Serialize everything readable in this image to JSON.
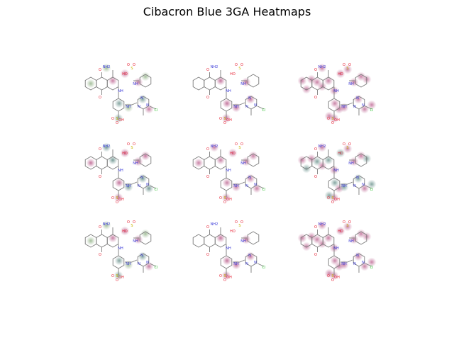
{
  "figure": {
    "title": "Cibacron Blue 3GA Heatmaps"
  },
  "palette": {
    "bond": "#7a7a7a",
    "oxygen": "#e8283a",
    "nitrogen": "#3a3ad8",
    "sulfur": "#c8b400",
    "chlorine": "#2cc02c",
    "heat_magenta": "#9c1a5c",
    "heat_teal": "#1e5a52",
    "heat_green": "#5a8a4a"
  },
  "atom_labels": {
    "amine": "NH2",
    "oxo": "O",
    "imine": "NH",
    "ring_n": "N",
    "chloro": "Cl",
    "sulfonyl_o": "O",
    "sulfonyl_s": "S",
    "hydroxy": "OH",
    "hydroxy_alt": "HO"
  },
  "panels": [
    {
      "row": 1,
      "col": 1,
      "scheme": "green-magenta-teal"
    },
    {
      "row": 1,
      "col": 2,
      "scheme": "magenta-sparse"
    },
    {
      "row": 1,
      "col": 3,
      "scheme": "magenta-dense"
    },
    {
      "row": 2,
      "col": 1,
      "scheme": "magenta-teal"
    },
    {
      "row": 2,
      "col": 2,
      "scheme": "magenta-medium"
    },
    {
      "row": 2,
      "col": 3,
      "scheme": "magenta-teal-dense"
    },
    {
      "row": 3,
      "col": 1,
      "scheme": "green-magenta-teal"
    },
    {
      "row": 3,
      "col": 2,
      "scheme": "magenta-sparse"
    },
    {
      "row": 3,
      "col": 3,
      "scheme": "magenta-dense"
    }
  ]
}
